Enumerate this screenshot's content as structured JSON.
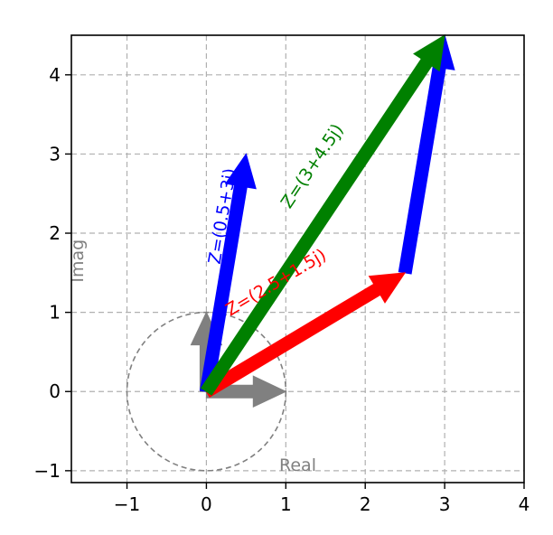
{
  "chart_data": {
    "type": "vector",
    "title": "",
    "xlim": [
      -1.7,
      4.0
    ],
    "ylim": [
      -1.15,
      4.5
    ],
    "xticks": [
      -1,
      0,
      1,
      2,
      3,
      4
    ],
    "yticks": [
      -1,
      0,
      1,
      2,
      3,
      4
    ],
    "xtick_labels": [
      "−1",
      "0",
      "1",
      "2",
      "3",
      "4"
    ],
    "ytick_labels": [
      "−1",
      "0",
      "1",
      "2",
      "3",
      "4"
    ],
    "grid": true,
    "unit_circle": {
      "center": [
        0,
        0
      ],
      "radius": 1,
      "color": "#808080"
    },
    "axis_name_labels": [
      {
        "text": "Real",
        "x": 1.15,
        "y": -1.0,
        "rotation": 0,
        "color": "#808080"
      },
      {
        "text": "Imag",
        "x": -1.55,
        "y": 1.65,
        "rotation": -90,
        "color": "#808080"
      }
    ],
    "vectors": [
      {
        "name": "real-unit",
        "start": [
          0,
          0
        ],
        "end": [
          1,
          0
        ],
        "color": "#808080",
        "shaft": 14,
        "label": ""
      },
      {
        "name": "imag-unit",
        "start": [
          0,
          0
        ],
        "end": [
          0,
          1
        ],
        "color": "#808080",
        "shaft": 14,
        "label": ""
      },
      {
        "name": "z1-shifted",
        "start": [
          2.5,
          1.5
        ],
        "end": [
          3,
          4.5
        ],
        "color": "#0000ff",
        "shaft": 14,
        "label": ""
      },
      {
        "name": "z1",
        "start": [
          0,
          0
        ],
        "end": [
          0.5,
          3
        ],
        "color": "#0000ff",
        "shaft": 14,
        "label": "Z=(0.5+3j)",
        "label_pos": [
          0.17,
          1.6
        ]
      },
      {
        "name": "z2",
        "start": [
          0,
          0
        ],
        "end": [
          2.5,
          1.5
        ],
        "color": "#ff0000",
        "shaft": 14,
        "label": "Z=(2.5+1.5j)",
        "label_pos": [
          0.3,
          0.95
        ]
      },
      {
        "name": "z-sum",
        "start": [
          0,
          0
        ],
        "end": [
          3,
          4.5
        ],
        "color": "#008000",
        "shaft": 14,
        "label": "Z=(3+4.5j)",
        "label_pos": [
          1.05,
          2.3
        ]
      }
    ]
  }
}
